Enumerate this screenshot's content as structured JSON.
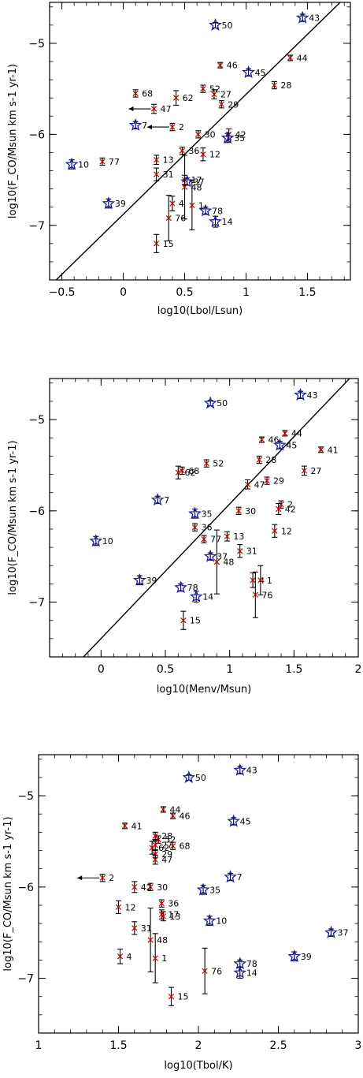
{
  "chart_data": [
    {
      "type": "scatter",
      "title": "",
      "xlabel": "log10(Lbol/Lsun)",
      "ylabel": "log10(F_CO/Msun km s-1 yr-1)",
      "xlim": [
        -0.6,
        1.85
      ],
      "ylim": [
        -7.6,
        -4.55
      ],
      "xticks": [
        -0.5,
        0,
        0.5,
        1,
        1.5
      ],
      "xtick_labels": [
        "−0.5",
        "0",
        "0.5",
        "1",
        "1.5"
      ],
      "yticks": [
        -5,
        -6,
        -7
      ],
      "ytick_labels": [
        "−5",
        "−6",
        "−7"
      ],
      "fit_line": {
        "x": [
          -0.6,
          1.85
        ],
        "y": [
          -7.67,
          -4.44
        ]
      },
      "points": [
        {
          "id": "50",
          "x": 0.75,
          "y": -4.8,
          "m": "star",
          "err": 0.03
        },
        {
          "id": "43",
          "x": 1.46,
          "y": -4.72,
          "m": "star",
          "err": 0.04
        },
        {
          "id": "44",
          "x": 1.36,
          "y": -5.16,
          "m": "x",
          "err": 0.03
        },
        {
          "id": "46",
          "x": 0.79,
          "y": -5.24,
          "m": "x",
          "err": 0.03
        },
        {
          "id": "45",
          "x": 1.02,
          "y": -5.32,
          "m": "star",
          "err": 0.04
        },
        {
          "id": "28",
          "x": 1.23,
          "y": -5.46,
          "m": "x",
          "err": 0.04
        },
        {
          "id": "52",
          "x": 0.65,
          "y": -5.5,
          "m": "x",
          "err": 0.04
        },
        {
          "id": "27",
          "x": 0.74,
          "y": -5.56,
          "m": "x",
          "err": 0.05
        },
        {
          "id": "68",
          "x": 0.1,
          "y": -5.55,
          "m": "x",
          "err": 0.04
        },
        {
          "id": "62",
          "x": 0.43,
          "y": -5.6,
          "m": "x",
          "err": 0.08
        },
        {
          "id": "29",
          "x": 0.8,
          "y": -5.67,
          "m": "x",
          "err": 0.04
        },
        {
          "id": "47",
          "x": 0.25,
          "y": -5.72,
          "m": "x",
          "err": 0.05,
          "upper": true
        },
        {
          "id": "7",
          "x": 0.1,
          "y": -5.9,
          "m": "star",
          "err": 0.04
        },
        {
          "id": "2",
          "x": 0.4,
          "y": -5.92,
          "m": "x",
          "err": 0.04,
          "upper": true
        },
        {
          "id": "30",
          "x": 0.61,
          "y": -6.0,
          "m": "x",
          "err": 0.04
        },
        {
          "id": "42",
          "x": 0.86,
          "y": -6.0,
          "m": "x",
          "err": 0.06
        },
        {
          "id": "35",
          "x": 0.85,
          "y": -6.04,
          "m": "star",
          "err": 0.05
        },
        {
          "id": "36",
          "x": 0.48,
          "y": -6.18,
          "m": "x",
          "err": 0.04
        },
        {
          "id": "12",
          "x": 0.65,
          "y": -6.22,
          "m": "x",
          "err": 0.07
        },
        {
          "id": "13",
          "x": 0.27,
          "y": -6.28,
          "m": "x",
          "err": 0.05
        },
        {
          "id": "77",
          "x": -0.17,
          "y": -6.3,
          "m": "x",
          "err": 0.04
        },
        {
          "id": "10",
          "x": -0.42,
          "y": -6.33,
          "m": "star",
          "err": 0.05
        },
        {
          "id": "31",
          "x": 0.27,
          "y": -6.44,
          "m": "x",
          "err": 0.07
        },
        {
          "id": "17",
          "x": 0.5,
          "y": -6.5,
          "m": "x",
          "err": 0.05
        },
        {
          "id": "37",
          "x": 0.52,
          "y": -6.52,
          "m": "star",
          "err": 0.04
        },
        {
          "id": "48",
          "x": 0.5,
          "y": -6.58,
          "m": "x",
          "err": 0.35
        },
        {
          "id": "39",
          "x": -0.12,
          "y": -6.76,
          "m": "star",
          "err": 0.05
        },
        {
          "id": "4",
          "x": 0.4,
          "y": -6.76,
          "m": "x",
          "err": 0.08
        },
        {
          "id": "1",
          "x": 0.56,
          "y": -6.78,
          "m": "x",
          "err": 0.27
        },
        {
          "id": "78",
          "x": 0.67,
          "y": -6.84,
          "m": "star",
          "err": 0.04
        },
        {
          "id": "76",
          "x": 0.37,
          "y": -6.92,
          "m": "x",
          "err": 0.25
        },
        {
          "id": "14",
          "x": 0.75,
          "y": -6.96,
          "m": "star",
          "err": 0.06
        },
        {
          "id": "15",
          "x": 0.27,
          "y": -7.2,
          "m": "x",
          "err": 0.1
        }
      ]
    },
    {
      "type": "scatter",
      "title": "",
      "xlabel": "log10(Menv/Msun)",
      "ylabel": "log10(F_CO/Msun km s-1 yr-1)",
      "xlim": [
        -0.4,
        2.0
      ],
      "ylim": [
        -7.6,
        -4.55
      ],
      "xticks": [
        0,
        0.5,
        1,
        1.5,
        2
      ],
      "xtick_labels": [
        "0",
        "0.5",
        "1",
        "1.5",
        "2"
      ],
      "yticks": [
        -5,
        -6,
        -7
      ],
      "ytick_labels": [
        "−5",
        "−6",
        "−7"
      ],
      "fit_line": {
        "x": [
          -0.15,
          2.0
        ],
        "y": [
          -7.62,
          -4.45
        ]
      },
      "points": [
        {
          "id": "50",
          "x": 0.85,
          "y": -4.82,
          "m": "star",
          "err": 0.03
        },
        {
          "id": "43",
          "x": 1.55,
          "y": -4.73,
          "m": "star",
          "err": 0.04
        },
        {
          "id": "44",
          "x": 1.43,
          "y": -5.15,
          "m": "x",
          "err": 0.03
        },
        {
          "id": "46",
          "x": 1.25,
          "y": -5.22,
          "m": "x",
          "err": 0.03
        },
        {
          "id": "45",
          "x": 1.39,
          "y": -5.28,
          "m": "star",
          "err": 0.04
        },
        {
          "id": "41",
          "x": 1.71,
          "y": -5.33,
          "m": "x",
          "err": 0.03
        },
        {
          "id": "28",
          "x": 1.23,
          "y": -5.44,
          "m": "x",
          "err": 0.04
        },
        {
          "id": "52",
          "x": 0.82,
          "y": -5.48,
          "m": "x",
          "err": 0.04
        },
        {
          "id": "27",
          "x": 1.58,
          "y": -5.56,
          "m": "x",
          "err": 0.05
        },
        {
          "id": "68",
          "x": 0.63,
          "y": -5.56,
          "m": "x",
          "err": 0.04
        },
        {
          "id": "62",
          "x": 0.6,
          "y": -5.58,
          "m": "x",
          "err": 0.07
        },
        {
          "id": "29",
          "x": 1.29,
          "y": -5.67,
          "m": "x",
          "err": 0.04
        },
        {
          "id": "47",
          "x": 1.14,
          "y": -5.71,
          "m": "x",
          "err": 0.05
        },
        {
          "id": "7",
          "x": 0.44,
          "y": -5.88,
          "m": "star",
          "err": 0.04
        },
        {
          "id": "2",
          "x": 1.4,
          "y": -5.93,
          "m": "x",
          "err": 0.04
        },
        {
          "id": "42",
          "x": 1.38,
          "y": -5.98,
          "m": "x",
          "err": 0.06
        },
        {
          "id": "30",
          "x": 1.07,
          "y": -6.0,
          "m": "x",
          "err": 0.04
        },
        {
          "id": "35",
          "x": 0.73,
          "y": -6.03,
          "m": "star",
          "err": 0.05
        },
        {
          "id": "36",
          "x": 0.73,
          "y": -6.18,
          "m": "x",
          "err": 0.04
        },
        {
          "id": "12",
          "x": 1.35,
          "y": -6.22,
          "m": "x",
          "err": 0.07
        },
        {
          "id": "13",
          "x": 0.98,
          "y": -6.28,
          "m": "x",
          "err": 0.05
        },
        {
          "id": "77",
          "x": 0.8,
          "y": -6.31,
          "m": "x",
          "err": 0.04
        },
        {
          "id": "10",
          "x": -0.04,
          "y": -6.33,
          "m": "star",
          "err": 0.05
        },
        {
          "id": "31",
          "x": 1.08,
          "y": -6.44,
          "m": "x",
          "err": 0.07
        },
        {
          "id": "37",
          "x": 0.85,
          "y": -6.5,
          "m": "star",
          "err": 0.04
        },
        {
          "id": "48",
          "x": 0.9,
          "y": -6.56,
          "m": "x",
          "err": 0.35
        },
        {
          "id": "39",
          "x": 0.3,
          "y": -6.76,
          "m": "star",
          "err": 0.05
        },
        {
          "id": "4",
          "x": 1.18,
          "y": -6.76,
          "m": "x",
          "err": 0.08
        },
        {
          "id": "1",
          "x": 1.24,
          "y": -6.76,
          "m": "x",
          "err": 0.16
        },
        {
          "id": "78",
          "x": 0.62,
          "y": -6.84,
          "m": "star",
          "err": 0.04
        },
        {
          "id": "76",
          "x": 1.2,
          "y": -6.92,
          "m": "x",
          "err": 0.25
        },
        {
          "id": "14",
          "x": 0.74,
          "y": -6.94,
          "m": "star",
          "err": 0.06
        },
        {
          "id": "15",
          "x": 0.64,
          "y": -7.2,
          "m": "x",
          "err": 0.1
        }
      ]
    },
    {
      "type": "scatter",
      "title": "",
      "xlabel": "log10(Tbol/K)",
      "ylabel": "log10(F_CO/Msun km s-1 yr-1)",
      "xlim": [
        1.0,
        3.0
      ],
      "ylim": [
        -7.6,
        -4.55
      ],
      "xticks": [
        1,
        1.5,
        2,
        2.5,
        3
      ],
      "xtick_labels": [
        "1",
        "1.5",
        "2",
        "2.5",
        "3"
      ],
      "yticks": [
        -5,
        -6,
        -7
      ],
      "ytick_labels": [
        "−5",
        "−6",
        "−7"
      ],
      "points": [
        {
          "id": "50",
          "x": 1.94,
          "y": -4.8,
          "m": "star",
          "err": 0.03
        },
        {
          "id": "43",
          "x": 2.26,
          "y": -4.72,
          "m": "star",
          "err": 0.04
        },
        {
          "id": "44",
          "x": 1.78,
          "y": -5.15,
          "m": "x",
          "err": 0.03
        },
        {
          "id": "46",
          "x": 1.84,
          "y": -5.22,
          "m": "x",
          "err": 0.03
        },
        {
          "id": "45",
          "x": 2.22,
          "y": -5.28,
          "m": "star",
          "err": 0.04
        },
        {
          "id": "41",
          "x": 1.54,
          "y": -5.33,
          "m": "x",
          "err": 0.03
        },
        {
          "id": "28",
          "x": 1.73,
          "y": -5.44,
          "m": "x",
          "err": 0.04
        },
        {
          "id": "52",
          "x": 1.75,
          "y": -5.48,
          "m": "x",
          "err": 0.04
        },
        {
          "id": "27",
          "x": 1.73,
          "y": -5.54,
          "m": "x",
          "err": 0.05
        },
        {
          "id": "68",
          "x": 1.84,
          "y": -5.55,
          "m": "x",
          "err": 0.04
        },
        {
          "id": "62",
          "x": 1.71,
          "y": -5.57,
          "m": "x",
          "err": 0.07
        },
        {
          "id": "29",
          "x": 1.73,
          "y": -5.64,
          "m": "x",
          "err": 0.04
        },
        {
          "id": "47",
          "x": 1.73,
          "y": -5.7,
          "m": "x",
          "err": 0.05
        },
        {
          "id": "7",
          "x": 2.2,
          "y": -5.89,
          "m": "star",
          "err": 0.04
        },
        {
          "id": "2",
          "x": 1.4,
          "y": -5.9,
          "m": "x",
          "err": 0.04,
          "upper": true
        },
        {
          "id": "42",
          "x": 1.6,
          "y": -6.0,
          "m": "x",
          "err": 0.06
        },
        {
          "id": "30",
          "x": 1.7,
          "y": -6.0,
          "m": "x",
          "err": 0.04
        },
        {
          "id": "35",
          "x": 2.03,
          "y": -6.03,
          "m": "star",
          "err": 0.05
        },
        {
          "id": "36",
          "x": 1.77,
          "y": -6.18,
          "m": "x",
          "err": 0.04
        },
        {
          "id": "12",
          "x": 1.5,
          "y": -6.22,
          "m": "x",
          "err": 0.07
        },
        {
          "id": "17",
          "x": 1.77,
          "y": -6.3,
          "m": "x",
          "err": 0.05
        },
        {
          "id": "13",
          "x": 1.78,
          "y": -6.32,
          "m": "x",
          "err": 0.05
        },
        {
          "id": "10",
          "x": 2.07,
          "y": -6.37,
          "m": "star",
          "err": 0.05
        },
        {
          "id": "31",
          "x": 1.6,
          "y": -6.45,
          "m": "x",
          "err": 0.07
        },
        {
          "id": "37",
          "x": 2.83,
          "y": -6.5,
          "m": "star",
          "err": 0.04
        },
        {
          "id": "48",
          "x": 1.7,
          "y": -6.58,
          "m": "x",
          "err": 0.35
        },
        {
          "id": "4",
          "x": 1.51,
          "y": -6.76,
          "m": "x",
          "err": 0.08
        },
        {
          "id": "39",
          "x": 2.6,
          "y": -6.76,
          "m": "star",
          "err": 0.05
        },
        {
          "id": "1",
          "x": 1.73,
          "y": -6.78,
          "m": "x",
          "err": 0.27
        },
        {
          "id": "78",
          "x": 2.26,
          "y": -6.84,
          "m": "star",
          "err": 0.04
        },
        {
          "id": "76",
          "x": 2.04,
          "y": -6.92,
          "m": "x",
          "err": 0.25
        },
        {
          "id": "14",
          "x": 2.26,
          "y": -6.94,
          "m": "star",
          "err": 0.06
        },
        {
          "id": "15",
          "x": 1.83,
          "y": -7.2,
          "m": "x",
          "err": 0.1
        }
      ]
    }
  ],
  "colors": {
    "axis": "#000000",
    "cross_marker": "#cc0000",
    "star_marker": "#1a1aaa",
    "errorbar": "#000000",
    "fit_line": "#000000"
  }
}
